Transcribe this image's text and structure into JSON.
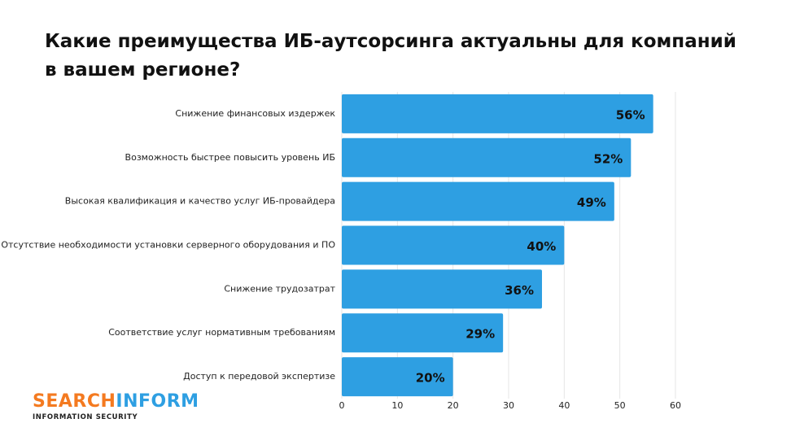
{
  "chart_data": {
    "type": "barh",
    "title": "Какие преимущества ИБ-аутсорсинга актуальны для компаний в вашем регионе?",
    "categories": [
      "Снижение финансовых издержек",
      "Возможность быстрее повысить уровень ИБ",
      "Высокая квалификация и качество услуг ИБ-провайдера",
      "Отсутствие необходимости установки серверного оборудования и ПО",
      "Снижение трудозатрат",
      "Соответствие услуг нормативным требованиям",
      "Доступ к передовой экспертизе"
    ],
    "values": [
      56,
      52,
      49,
      40,
      36,
      29,
      20
    ],
    "value_labels": [
      "56%",
      "52%",
      "49%",
      "40%",
      "36%",
      "29%",
      "20%"
    ],
    "color": "#2e9fe2",
    "xlim": [
      0,
      60
    ],
    "xticks": [
      0,
      10,
      20,
      30,
      40,
      50,
      60
    ],
    "grid": true
  },
  "logo": {
    "name_start": "SEARCH",
    "name_end": "INFORM",
    "tagline": "INFORMATION SECURITY"
  }
}
